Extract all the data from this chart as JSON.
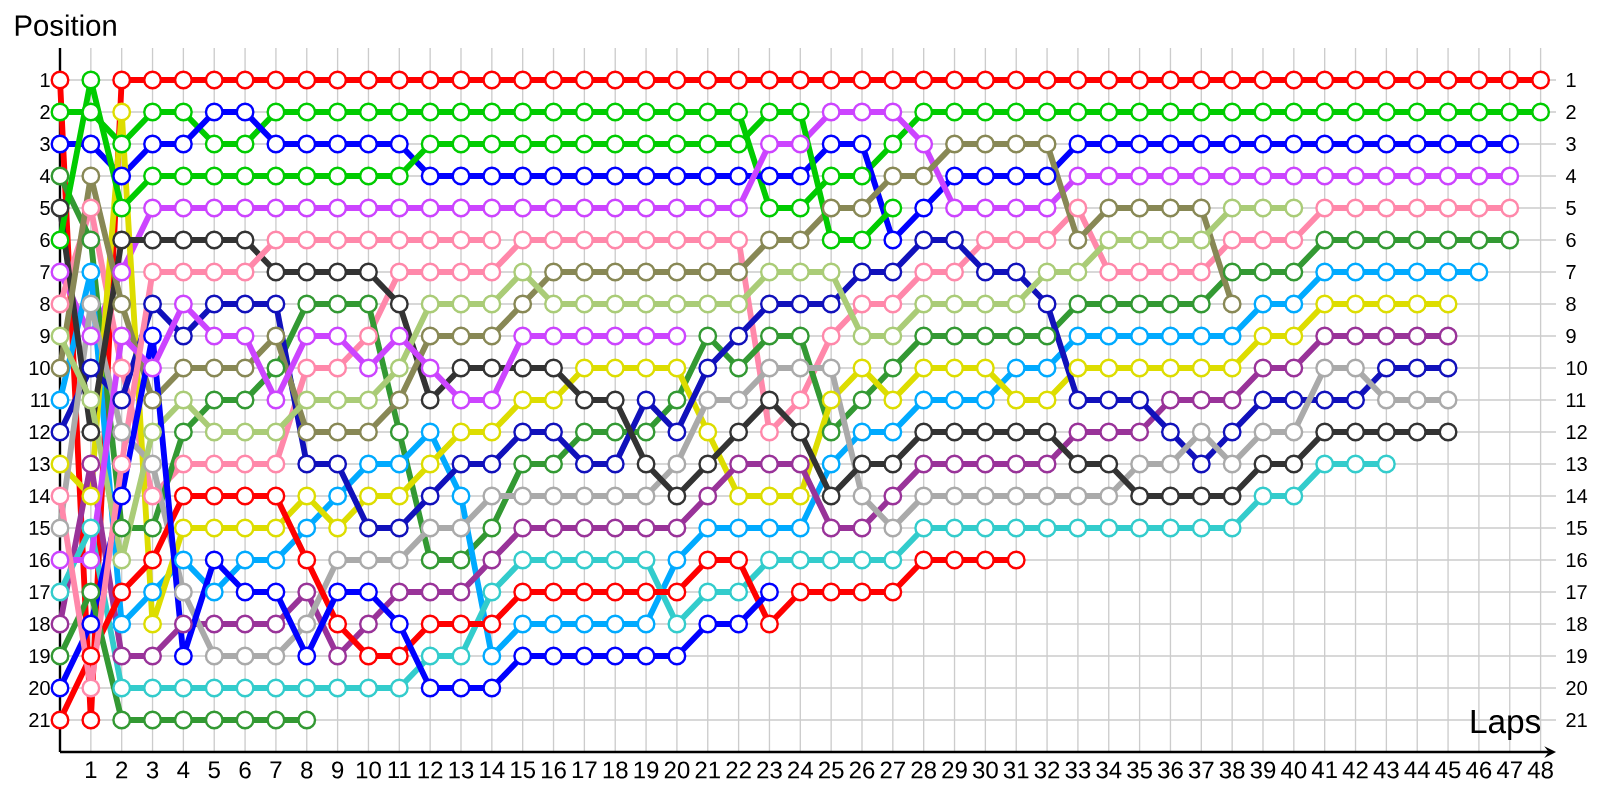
{
  "chart_data": {
    "type": "line",
    "xlabel": "Laps",
    "ylabel": "Position",
    "marker": "circle",
    "line_style": "solid",
    "grid": true,
    "x": [
      0,
      1,
      2,
      3,
      4,
      5,
      6,
      7,
      8,
      9,
      10,
      11,
      12,
      13,
      14,
      15,
      16,
      17,
      18,
      19,
      20,
      21,
      22,
      23,
      24,
      25,
      26,
      27,
      28,
      29,
      30,
      31,
      32,
      33,
      34,
      35,
      36,
      37,
      38,
      39,
      40,
      41,
      42,
      43,
      44,
      45,
      46,
      47,
      48
    ],
    "xlim": [
      0,
      48.5
    ],
    "xticks": [
      1,
      2,
      3,
      4,
      5,
      6,
      7,
      8,
      9,
      10,
      11,
      12,
      13,
      14,
      15,
      16,
      17,
      18,
      19,
      20,
      21,
      22,
      23,
      24,
      25,
      26,
      27,
      28,
      29,
      30,
      31,
      32,
      33,
      34,
      35,
      36,
      37,
      38,
      39,
      40,
      41,
      42,
      43,
      44,
      45,
      46,
      47,
      48
    ],
    "ylim": [
      22,
      0
    ],
    "yticks": [
      1,
      2,
      3,
      4,
      5,
      6,
      7,
      8,
      9,
      10,
      11,
      12,
      13,
      14,
      15,
      16,
      17,
      18,
      19,
      20,
      21
    ],
    "y2lim": [
      22,
      0
    ],
    "y2ticks": [
      1,
      2,
      3,
      4,
      5,
      6,
      7,
      8,
      9,
      10,
      11,
      12,
      13,
      14,
      15,
      16,
      17,
      18,
      19,
      20,
      21
    ],
    "series": [
      {
        "color": "#ff0000",
        "values": [
          1,
          21,
          1,
          1,
          1,
          1,
          1,
          1,
          1,
          1,
          1,
          1,
          1,
          1,
          1,
          1,
          1,
          1,
          1,
          1,
          1,
          1,
          1,
          1,
          1,
          1,
          1,
          1,
          1,
          1,
          1,
          1,
          1,
          1,
          1,
          1,
          1,
          1,
          1,
          1,
          1,
          1,
          1,
          1,
          1,
          1,
          1,
          1,
          1
        ]
      },
      {
        "color": "#00cc00",
        "values": [
          2,
          2,
          3,
          2,
          2,
          3,
          3,
          2,
          2,
          2,
          2,
          2,
          2,
          2,
          2,
          2,
          2,
          2,
          2,
          2,
          2,
          2,
          2,
          5,
          5,
          4,
          4,
          3,
          2,
          2,
          2,
          2,
          2,
          2,
          2,
          2,
          2,
          2,
          2,
          2,
          2,
          2,
          2,
          2,
          2,
          2,
          2,
          2,
          2
        ]
      },
      {
        "color": "#0000ff",
        "values": [
          3,
          3,
          4,
          3,
          3,
          2,
          2,
          3,
          3,
          3,
          3,
          3,
          4,
          4,
          4,
          4,
          4,
          4,
          4,
          4,
          4,
          4,
          4,
          4,
          4,
          3,
          3,
          6,
          5,
          4,
          4,
          4,
          4,
          3,
          3,
          3,
          3,
          3,
          3,
          3,
          3,
          3,
          3,
          3,
          3,
          3,
          3,
          3,
          null
        ]
      },
      {
        "color": "#cc44ff",
        "values": [
          7,
          9,
          7,
          5,
          5,
          5,
          5,
          5,
          5,
          5,
          5,
          5,
          5,
          5,
          5,
          5,
          5,
          5,
          5,
          5,
          5,
          5,
          5,
          3,
          3,
          2,
          2,
          2,
          3,
          5,
          5,
          5,
          5,
          4,
          4,
          4,
          4,
          4,
          4,
          4,
          4,
          4,
          4,
          4,
          4,
          4,
          4,
          4,
          null
        ]
      },
      {
        "color": "#ff88aa",
        "values": [
          8,
          5,
          10,
          14,
          13,
          13,
          13,
          13,
          10,
          10,
          9,
          7,
          7,
          7,
          7,
          6,
          6,
          6,
          6,
          6,
          6,
          6,
          6,
          12,
          11,
          9,
          8,
          8,
          7,
          7,
          6,
          6,
          6,
          5,
          7,
          7,
          7,
          7,
          6,
          6,
          6,
          5,
          5,
          5,
          5,
          5,
          5,
          5,
          null
        ]
      },
      {
        "color": "#339933",
        "values": [
          4,
          6,
          15,
          15,
          12,
          11,
          11,
          10,
          8,
          8,
          8,
          12,
          16,
          16,
          15,
          13,
          13,
          12,
          12,
          12,
          11,
          9,
          10,
          9,
          9,
          12,
          11,
          10,
          9,
          9,
          9,
          9,
          9,
          8,
          8,
          8,
          8,
          8,
          7,
          7,
          7,
          6,
          6,
          6,
          6,
          6,
          6,
          6,
          null
        ]
      },
      {
        "color": "#00aaff",
        "values": [
          11,
          7,
          18,
          17,
          16,
          17,
          16,
          16,
          15,
          14,
          13,
          13,
          12,
          14,
          19,
          18,
          18,
          18,
          18,
          18,
          16,
          15,
          15,
          15,
          15,
          13,
          12,
          12,
          11,
          11,
          11,
          10,
          10,
          9,
          9,
          9,
          9,
          9,
          9,
          8,
          8,
          7,
          7,
          7,
          7,
          7,
          7,
          null,
          null
        ]
      },
      {
        "color": "#dddd00",
        "values": [
          13,
          14,
          2,
          18,
          15,
          15,
          15,
          15,
          14,
          15,
          14,
          14,
          13,
          12,
          12,
          11,
          11,
          10,
          10,
          10,
          10,
          12,
          14,
          14,
          14,
          11,
          10,
          11,
          10,
          10,
          10,
          11,
          11,
          10,
          10,
          10,
          10,
          10,
          10,
          9,
          9,
          8,
          8,
          8,
          8,
          8,
          null,
          null,
          null
        ]
      },
      {
        "color": "#993399",
        "values": [
          18,
          13,
          19,
          19,
          18,
          18,
          18,
          18,
          17,
          19,
          18,
          17,
          17,
          17,
          16,
          15,
          15,
          15,
          15,
          15,
          15,
          14,
          13,
          13,
          13,
          15,
          15,
          14,
          13,
          13,
          13,
          13,
          13,
          12,
          12,
          12,
          11,
          11,
          11,
          10,
          10,
          9,
          9,
          9,
          9,
          9,
          null,
          null,
          null
        ]
      },
      {
        "color": "#1111bb",
        "values": [
          12,
          10,
          11,
          8,
          9,
          8,
          8,
          8,
          13,
          13,
          15,
          15,
          14,
          13,
          13,
          12,
          12,
          13,
          13,
          11,
          12,
          10,
          9,
          8,
          8,
          8,
          7,
          7,
          6,
          6,
          7,
          7,
          8,
          11,
          11,
          11,
          12,
          13,
          12,
          11,
          11,
          11,
          11,
          10,
          10,
          10,
          null,
          null,
          null
        ]
      },
      {
        "color": "#aaaaaa",
        "values": [
          15,
          8,
          12,
          13,
          17,
          19,
          19,
          19,
          18,
          16,
          16,
          16,
          15,
          15,
          14,
          14,
          14,
          14,
          14,
          14,
          13,
          11,
          11,
          10,
          10,
          10,
          14,
          15,
          14,
          14,
          14,
          14,
          14,
          14,
          14,
          13,
          13,
          12,
          13,
          12,
          12,
          10,
          10,
          11,
          11,
          11,
          null,
          null,
          null
        ]
      },
      {
        "color": "#333333",
        "values": [
          5,
          12,
          6,
          6,
          6,
          6,
          6,
          7,
          7,
          7,
          7,
          8,
          11,
          10,
          10,
          10,
          10,
          11,
          11,
          13,
          14,
          13,
          12,
          11,
          12,
          14,
          13,
          13,
          12,
          12,
          12,
          12,
          12,
          13,
          13,
          14,
          14,
          14,
          14,
          13,
          13,
          12,
          12,
          12,
          12,
          12,
          null,
          null,
          null
        ]
      },
      {
        "color": "#33cccc",
        "values": [
          17,
          15,
          20,
          20,
          20,
          20,
          20,
          20,
          20,
          20,
          20,
          20,
          19,
          19,
          17,
          16,
          16,
          16,
          16,
          16,
          18,
          17,
          17,
          16,
          16,
          16,
          16,
          16,
          15,
          15,
          15,
          15,
          15,
          15,
          15,
          15,
          15,
          15,
          15,
          14,
          14,
          13,
          13,
          13,
          null,
          null,
          null,
          null,
          null
        ]
      },
      {
        "color": "#888855",
        "values": [
          10,
          4,
          8,
          11,
          10,
          10,
          10,
          9,
          12,
          12,
          12,
          11,
          9,
          9,
          9,
          8,
          7,
          7,
          7,
          7,
          7,
          7,
          7,
          6,
          6,
          5,
          5,
          4,
          4,
          3,
          3,
          3,
          3,
          6,
          5,
          5,
          5,
          5,
          8,
          null,
          null,
          null,
          null,
          null,
          null,
          null,
          null,
          null,
          null
        ]
      },
      {
        "color": "#aacc77",
        "values": [
          9,
          11,
          16,
          12,
          11,
          12,
          12,
          12,
          11,
          11,
          11,
          10,
          8,
          8,
          8,
          7,
          8,
          8,
          8,
          8,
          8,
          8,
          8,
          7,
          7,
          7,
          9,
          9,
          8,
          8,
          8,
          8,
          7,
          7,
          6,
          6,
          6,
          6,
          5,
          5,
          5,
          null,
          null,
          null,
          null,
          null,
          null,
          null,
          null
        ]
      },
      {
        "color": "#ff0000",
        "values": [
          21,
          19,
          17,
          16,
          14,
          14,
          14,
          14,
          16,
          18,
          19,
          19,
          18,
          18,
          18,
          17,
          17,
          17,
          17,
          17,
          17,
          16,
          16,
          18,
          17,
          17,
          17,
          17,
          16,
          16,
          16,
          16,
          null,
          null,
          null,
          null,
          null,
          null,
          null,
          null,
          null,
          null,
          null,
          null,
          null,
          null,
          null,
          null,
          null
        ]
      },
      {
        "color": "#0000ff",
        "values": [
          20,
          18,
          14,
          9,
          19,
          16,
          17,
          17,
          19,
          17,
          17,
          18,
          20,
          20,
          20,
          19,
          19,
          19,
          19,
          19,
          19,
          18,
          18,
          17,
          null,
          null,
          null,
          null,
          null,
          null,
          null,
          null,
          null,
          null,
          null,
          null,
          null,
          null,
          null,
          null,
          null,
          null,
          null,
          null,
          null,
          null,
          null,
          null,
          null
        ]
      },
      {
        "color": "#00cc00",
        "values": [
          6,
          1,
          5,
          4,
          4,
          4,
          4,
          4,
          4,
          4,
          4,
          4,
          3,
          3,
          3,
          3,
          3,
          3,
          3,
          3,
          3,
          3,
          3,
          2,
          2,
          6,
          6,
          5,
          null,
          null,
          null,
          null,
          null,
          null,
          null,
          null,
          null,
          null,
          null,
          null,
          null,
          null,
          null,
          null,
          null,
          null,
          null,
          null,
          null
        ]
      },
      {
        "color": "#339933",
        "values": [
          19,
          17,
          21,
          21,
          21,
          21,
          21,
          21,
          21,
          null,
          null,
          null,
          null,
          null,
          null,
          null,
          null,
          null,
          null,
          null,
          null,
          null,
          null,
          null,
          null,
          null,
          null,
          null,
          null,
          null,
          null,
          null,
          null,
          null,
          null,
          null,
          null,
          null,
          null,
          null,
          null,
          null,
          null,
          null,
          null,
          null,
          null,
          null,
          null
        ]
      },
      {
        "color": "#cc44ff",
        "values": [
          16,
          16,
          9,
          10,
          8,
          9,
          9,
          11,
          9,
          9,
          10,
          9,
          10,
          11,
          11,
          9,
          9,
          9,
          9,
          9,
          9,
          null,
          null,
          null,
          null,
          null,
          null,
          null,
          null,
          null,
          null,
          null,
          null,
          null,
          null,
          null,
          null,
          null,
          null,
          null,
          null,
          null,
          null,
          null,
          null,
          null,
          null,
          null,
          null
        ]
      },
      {
        "color": "#ff88aa",
        "values": [
          14,
          20,
          13,
          7,
          7,
          7,
          7,
          6,
          6,
          6,
          6,
          6,
          6,
          6,
          6,
          null,
          null,
          null,
          null,
          null,
          null,
          null,
          null,
          null,
          null,
          null,
          null,
          null,
          null,
          null,
          null,
          null,
          null,
          null,
          null,
          null,
          null,
          null,
          null,
          null,
          null,
          null,
          null,
          null,
          null,
          null,
          null,
          null,
          null
        ]
      }
    ]
  }
}
